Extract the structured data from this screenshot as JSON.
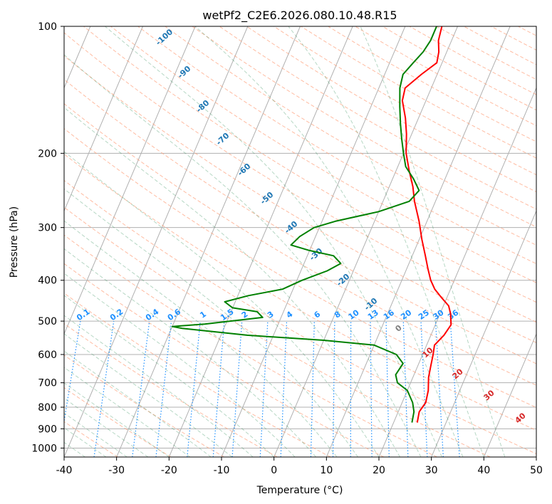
{
  "chart_data": {
    "type": "line",
    "title": "wetPf2_C2E6.2026.080.10.48.R15",
    "xlabel": "Temperature (°C)",
    "ylabel": "Pressure (hPa)",
    "xlim": [
      -40,
      50
    ],
    "ylim": [
      1050,
      100
    ],
    "y_scale": "log",
    "grid": true,
    "x_ticks": [
      -40,
      -30,
      -20,
      -10,
      0,
      10,
      20,
      30,
      40,
      50
    ],
    "y_ticks": [
      100,
      200,
      300,
      400,
      500,
      600,
      700,
      800,
      900,
      1000
    ],
    "dry_adiabat_labels": [
      "-100",
      "-90",
      "-80",
      "-70",
      "-60",
      "-50",
      "-40",
      "-30",
      "-20",
      "-10",
      "0",
      "10",
      "20",
      "30",
      "40"
    ],
    "mixing_ratio_labels": [
      "0.1",
      "0.2",
      "0.4",
      "0.6",
      "1",
      "1.5",
      "2",
      "3",
      "4",
      "6",
      "8",
      "10",
      "13",
      "16",
      "20",
      "25",
      "30",
      "36"
    ],
    "series": [
      {
        "color": "#ff0000",
        "points": [
          [
            24.5,
            870
          ],
          [
            24.0,
            820
          ],
          [
            24.5,
            780
          ],
          [
            24.0,
            730
          ],
          [
            23.0,
            680
          ],
          [
            22.5,
            640
          ],
          [
            22.0,
            600
          ],
          [
            21.5,
            570
          ],
          [
            22.5,
            540
          ],
          [
            23.0,
            510
          ],
          [
            22.0,
            480
          ],
          [
            21.0,
            460
          ],
          [
            19.0,
            440
          ],
          [
            17.0,
            420
          ],
          [
            15.5,
            400
          ],
          [
            14.0,
            375
          ],
          [
            12.5,
            350
          ],
          [
            10.5,
            320
          ],
          [
            8.5,
            290
          ],
          [
            6.0,
            260
          ],
          [
            4.5,
            240
          ],
          [
            2.5,
            220
          ],
          [
            0.5,
            200
          ],
          [
            -1.0,
            180
          ],
          [
            -2.5,
            165
          ],
          [
            -4.5,
            150
          ],
          [
            -5.0,
            140
          ],
          [
            -3.0,
            130
          ],
          [
            -1.0,
            122
          ],
          [
            -1.5,
            115
          ],
          [
            -2.5,
            108
          ],
          [
            -3.0,
            100
          ]
        ]
      },
      {
        "color": "#008000",
        "points": [
          [
            23.5,
            870
          ],
          [
            23.0,
            820
          ],
          [
            22.0,
            780
          ],
          [
            20.0,
            730
          ],
          [
            17.5,
            700
          ],
          [
            16.5,
            670
          ],
          [
            17.0,
            630
          ],
          [
            15.0,
            600
          ],
          [
            10.0,
            570
          ],
          [
            0.0,
            555
          ],
          [
            -15.0,
            540
          ],
          [
            -28.0,
            520
          ],
          [
            -30.0,
            515
          ],
          [
            -24.0,
            508
          ],
          [
            -13.5,
            490
          ],
          [
            -15.0,
            475
          ],
          [
            -20.0,
            465
          ],
          [
            -22.0,
            450
          ],
          [
            -18.0,
            435
          ],
          [
            -12.0,
            420
          ],
          [
            -9.0,
            400
          ],
          [
            -5.0,
            380
          ],
          [
            -3.0,
            365
          ],
          [
            -5.0,
            350
          ],
          [
            -10.0,
            340
          ],
          [
            -14.0,
            330
          ],
          [
            -13.0,
            315
          ],
          [
            -11.0,
            300
          ],
          [
            -7.5,
            290
          ],
          [
            0.0,
            275
          ],
          [
            5.0,
            260
          ],
          [
            6.0,
            245
          ],
          [
            4.0,
            230
          ],
          [
            1.5,
            215
          ],
          [
            0.0,
            200
          ],
          [
            -1.5,
            185
          ],
          [
            -3.0,
            170
          ],
          [
            -4.5,
            155
          ],
          [
            -6.0,
            140
          ],
          [
            -6.5,
            130
          ],
          [
            -5.5,
            122
          ],
          [
            -4.5,
            115
          ],
          [
            -4.0,
            108
          ],
          [
            -4.0,
            100
          ]
        ]
      }
    ]
  },
  "colors": {
    "grid": "#b0b0b0",
    "dry_adiabat": "#ffa07a",
    "moist_adiabat": "#2e8b57",
    "mixing_ratio": "#1e90ff",
    "dry_label": "#1f77b4",
    "dry_label_warm": "#d62728",
    "zero_label": "#808080",
    "reference": "#c8a27a"
  }
}
